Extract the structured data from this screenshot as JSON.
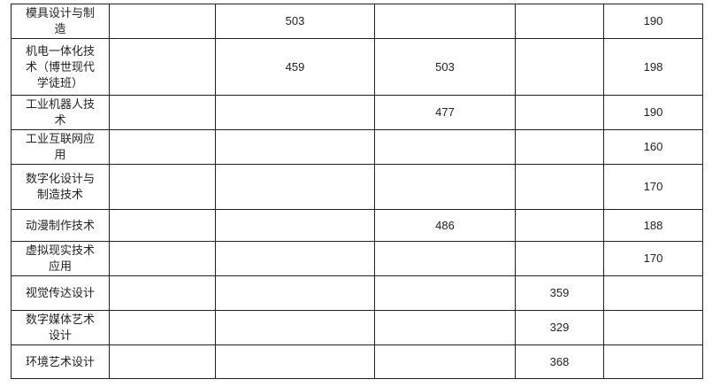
{
  "table": {
    "rows": [
      {
        "name": "模具设计与制造",
        "c1": "",
        "c2": "503",
        "c3": "",
        "c4": "",
        "c5": "190"
      },
      {
        "name": "机电一体化技术（博世现代学徒班）",
        "c1": "",
        "c2": "459",
        "c3": "503",
        "c4": "",
        "c5": "198"
      },
      {
        "name": "工业机器人技术",
        "c1": "",
        "c2": "",
        "c3": "477",
        "c4": "",
        "c5": "190"
      },
      {
        "name": "工业互联网应用",
        "c1": "",
        "c2": "",
        "c3": "",
        "c4": "",
        "c5": "160"
      },
      {
        "name": "数字化设计与制造技术",
        "c1": "",
        "c2": "",
        "c3": "",
        "c4": "",
        "c5": "170"
      },
      {
        "name": "动漫制作技术",
        "c1": "",
        "c2": "",
        "c3": "486",
        "c4": "",
        "c5": "188"
      },
      {
        "name": "虚拟现实技术应用",
        "c1": "",
        "c2": "",
        "c3": "",
        "c4": "",
        "c5": "170"
      },
      {
        "name": "视觉传达设计",
        "c1": "",
        "c2": "",
        "c3": "",
        "c4": "359",
        "c5": ""
      },
      {
        "name": "数字媒体艺术设计",
        "c1": "",
        "c2": "",
        "c3": "",
        "c4": "329",
        "c5": ""
      },
      {
        "name": "环境艺术设计",
        "c1": "",
        "c2": "",
        "c3": "",
        "c4": "368",
        "c5": ""
      }
    ]
  }
}
